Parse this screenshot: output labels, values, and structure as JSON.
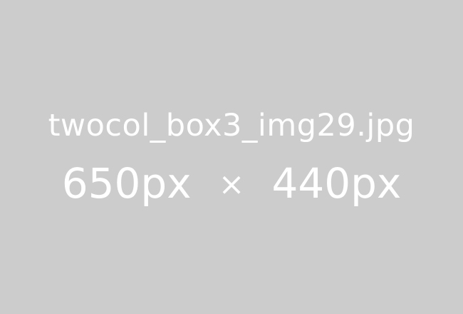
{
  "placeholder": {
    "filename": "twocol_box3_img29.jpg",
    "width_text": "650px",
    "times_symbol": "×",
    "height_text": "440px",
    "background_color": "#cccccc",
    "text_color": "#ffffff"
  }
}
